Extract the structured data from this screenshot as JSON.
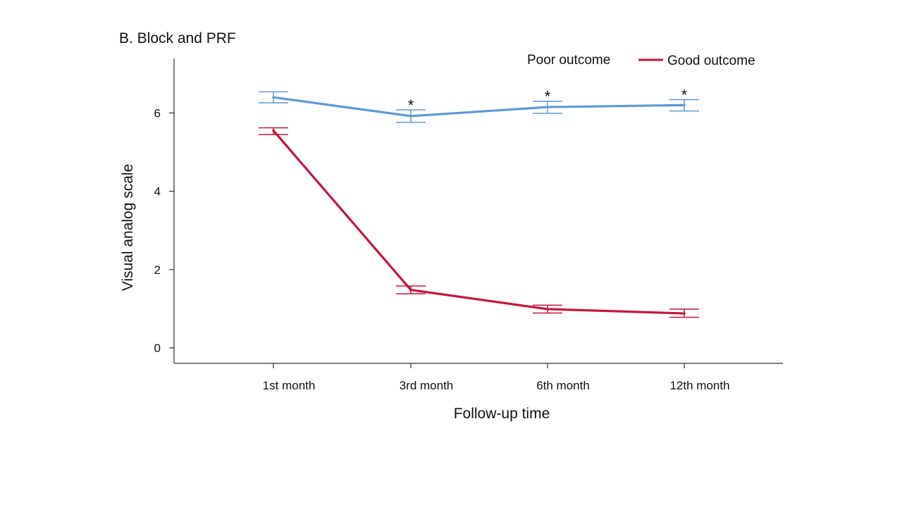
{
  "chart_data": {
    "type": "line",
    "title": "B. Block and PRF",
    "xlabel": "Follow-up time",
    "ylabel": "Visual analog scale",
    "categories": [
      "1st month",
      "3rd month",
      "6th month",
      "12th month"
    ],
    "ylim": [
      -0.4,
      7.3
    ],
    "yticks": [
      0,
      2,
      4,
      6
    ],
    "grid": false,
    "legend_position": "top-right",
    "series": [
      {
        "name": "Poor outcome",
        "color": "#5B9BD5",
        "values": [
          6.4,
          5.92,
          6.15,
          6.2
        ],
        "error_low": [
          6.26,
          5.76,
          5.99,
          6.05
        ],
        "error_high": [
          6.54,
          6.08,
          6.3,
          6.34
        ]
      },
      {
        "name": "Good outcome",
        "color": "#C8143C",
        "values": [
          5.55,
          1.48,
          0.99,
          0.88
        ],
        "error_low": [
          5.45,
          1.38,
          0.89,
          0.78
        ],
        "error_high": [
          5.62,
          1.58,
          1.09,
          0.99
        ]
      }
    ],
    "annotations": [
      {
        "category": "3rd month",
        "text": "*"
      },
      {
        "category": "6th month",
        "text": "*"
      },
      {
        "category": "12th month",
        "text": "*"
      }
    ]
  }
}
